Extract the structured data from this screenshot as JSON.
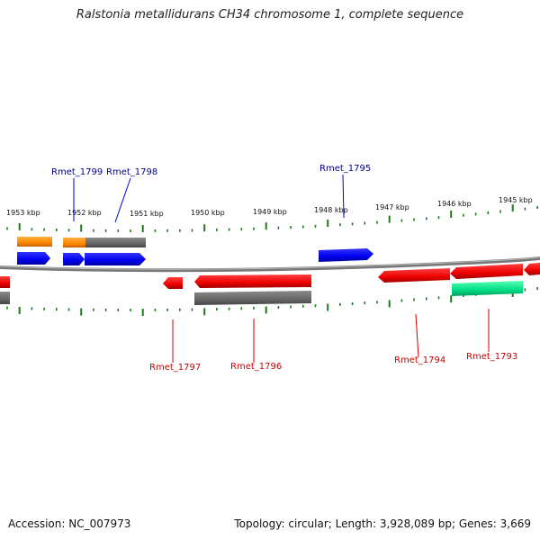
{
  "title": "Ralstonia metallidurans CH34 chromosome 1, complete sequence",
  "accession": "Accession: NC_007973",
  "topology": "Topology: circular; Length: 3,928,089 bp; Genes: 3,669",
  "colors": {
    "forward_gene": "#0000ee",
    "reverse_gene": "#ee0000",
    "orange_feature": "#ff8c00",
    "gray_feature": "#6e6e6e",
    "green_feature": "#00dd88",
    "tick": "#1a7a1a",
    "backbone": "#888888",
    "upper_label": "#00008b",
    "lower_label": "#cc0000"
  },
  "scale_labels": [
    "1953 kbp",
    "1952 kbp",
    "1951 kbp",
    "1950 kbp",
    "1949 kbp",
    "1948 kbp",
    "1947 kbp",
    "1946 kbp",
    "1945 kbp"
  ],
  "gene_labels_upper": [
    "Rmet_1799",
    "Rmet_1798",
    "Rmet_1795"
  ],
  "gene_labels_lower": [
    "Rmet_1797",
    "Rmet_1796",
    "Rmet_1794",
    "Rmet_1793"
  ]
}
